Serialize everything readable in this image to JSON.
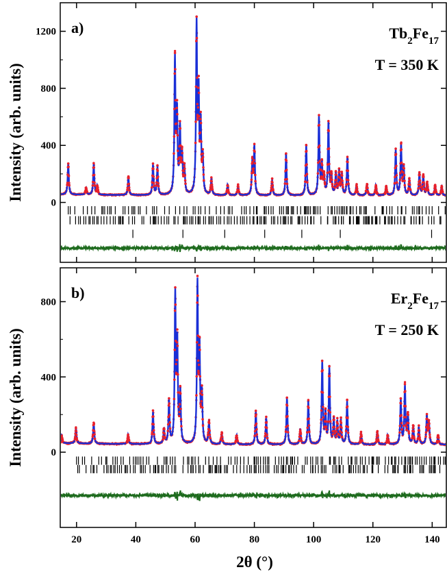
{
  "chart_data": [
    {
      "type": "line",
      "panel_label": "a)",
      "compound": {
        "el": "Tb",
        "sub1": "2",
        "el2": "Fe",
        "sub2": "17"
      },
      "temperature": "T = 350 K",
      "ylabel": "Intensity (arb. units)",
      "xlim": [
        14.5,
        145
      ],
      "ylim": [
        -420,
        1400
      ],
      "yticks": [
        0,
        400,
        800,
        1200
      ],
      "ytick_labels": [
        "0",
        "400",
        "800",
        "1200"
      ],
      "baseline": 48,
      "difference_offset": -320,
      "legend": "none",
      "grid": false,
      "colors": {
        "observed": "#e8202a",
        "calculated": "#1a2fd6",
        "difference": "#1e6b1e",
        "bragg": "#000000"
      },
      "peaks": [
        {
          "x": 17.2,
          "y": 270
        },
        {
          "x": 23.2,
          "y": 95
        },
        {
          "x": 25.8,
          "y": 265
        },
        {
          "x": 27.0,
          "y": 110
        },
        {
          "x": 37.5,
          "y": 180
        },
        {
          "x": 45.8,
          "y": 260
        },
        {
          "x": 47.3,
          "y": 245
        },
        {
          "x": 53.2,
          "y": 990
        },
        {
          "x": 53.9,
          "y": 600
        },
        {
          "x": 54.9,
          "y": 500
        },
        {
          "x": 55.6,
          "y": 320
        },
        {
          "x": 56.4,
          "y": 230
        },
        {
          "x": 60.5,
          "y": 1230
        },
        {
          "x": 61.2,
          "y": 720
        },
        {
          "x": 61.9,
          "y": 520
        },
        {
          "x": 62.6,
          "y": 290
        },
        {
          "x": 65.5,
          "y": 160
        },
        {
          "x": 71.0,
          "y": 120
        },
        {
          "x": 74.5,
          "y": 115
        },
        {
          "x": 79.3,
          "y": 280
        },
        {
          "x": 80.0,
          "y": 390
        },
        {
          "x": 86.0,
          "y": 160
        },
        {
          "x": 90.7,
          "y": 340
        },
        {
          "x": 97.5,
          "y": 400
        },
        {
          "x": 101.8,
          "y": 600
        },
        {
          "x": 102.8,
          "y": 250
        },
        {
          "x": 103.5,
          "y": 180
        },
        {
          "x": 105.0,
          "y": 560
        },
        {
          "x": 106.0,
          "y": 190
        },
        {
          "x": 107.5,
          "y": 200
        },
        {
          "x": 108.6,
          "y": 220
        },
        {
          "x": 109.5,
          "y": 190
        },
        {
          "x": 111.4,
          "y": 320
        },
        {
          "x": 114.5,
          "y": 120
        },
        {
          "x": 118.0,
          "y": 130
        },
        {
          "x": 121.0,
          "y": 120
        },
        {
          "x": 124.5,
          "y": 110
        },
        {
          "x": 127.7,
          "y": 370
        },
        {
          "x": 129.5,
          "y": 400
        },
        {
          "x": 130.4,
          "y": 250
        },
        {
          "x": 132.3,
          "y": 160
        },
        {
          "x": 135.7,
          "y": 210
        },
        {
          "x": 137.0,
          "y": 190
        },
        {
          "x": 138.3,
          "y": 140
        },
        {
          "x": 141.0,
          "y": 120
        },
        {
          "x": 143.2,
          "y": 110
        }
      ],
      "bragg_rows": [
        {
          "y": -55,
          "start": 17.2,
          "step": 0.95,
          "jitter": 0.55
        },
        {
          "y": -125,
          "start": 17.8,
          "step": 0.75,
          "jitter": 0.45
        },
        {
          "y": -220,
          "positions": [
            39.0,
            55.9,
            70.0,
            83.5,
            96.0,
            109.0,
            139.8
          ]
        }
      ]
    },
    {
      "type": "line",
      "panel_label": "b)",
      "compound": {
        "el": "Er",
        "sub1": "2",
        "el2": "Fe",
        "sub2": "17"
      },
      "temperature": "T = 250 K",
      "ylabel": "Intensity (arb. units)",
      "xlabel": "2θ (°)",
      "xlim": [
        14.5,
        145
      ],
      "xticks": [
        20,
        40,
        60,
        80,
        100,
        120,
        140
      ],
      "xtick_labels": [
        "20",
        "40",
        "60",
        "80",
        "100",
        "120",
        "140"
      ],
      "ylim": [
        -400,
        980
      ],
      "yticks": [
        0,
        400,
        800
      ],
      "ytick_labels": [
        "0",
        "400",
        "800"
      ],
      "baseline": 40,
      "difference_offset": -230,
      "legend": "none",
      "grid": false,
      "colors": {
        "observed": "#e8202a",
        "calculated": "#1a2fd6",
        "difference": "#1e6b1e",
        "bragg": "#000000"
      },
      "peaks": [
        {
          "x": 15.0,
          "y": 80
        },
        {
          "x": 19.8,
          "y": 125
        },
        {
          "x": 25.8,
          "y": 155
        },
        {
          "x": 37.4,
          "y": 90
        },
        {
          "x": 45.8,
          "y": 210
        },
        {
          "x": 49.5,
          "y": 120
        },
        {
          "x": 51.2,
          "y": 270
        },
        {
          "x": 53.3,
          "y": 820
        },
        {
          "x": 54.0,
          "y": 560
        },
        {
          "x": 55.0,
          "y": 310
        },
        {
          "x": 60.8,
          "y": 880
        },
        {
          "x": 61.5,
          "y": 520
        },
        {
          "x": 62.3,
          "y": 300
        },
        {
          "x": 64.7,
          "y": 160
        },
        {
          "x": 69.0,
          "y": 100
        },
        {
          "x": 74.0,
          "y": 90
        },
        {
          "x": 80.5,
          "y": 220
        },
        {
          "x": 84.0,
          "y": 180
        },
        {
          "x": 91.0,
          "y": 290
        },
        {
          "x": 95.5,
          "y": 120
        },
        {
          "x": 98.2,
          "y": 270
        },
        {
          "x": 102.9,
          "y": 480
        },
        {
          "x": 104.0,
          "y": 200
        },
        {
          "x": 105.3,
          "y": 450
        },
        {
          "x": 106.8,
          "y": 170
        },
        {
          "x": 108.0,
          "y": 160
        },
        {
          "x": 109.2,
          "y": 170
        },
        {
          "x": 111.3,
          "y": 270
        },
        {
          "x": 116.0,
          "y": 100
        },
        {
          "x": 121.5,
          "y": 110
        },
        {
          "x": 125.0,
          "y": 90
        },
        {
          "x": 129.4,
          "y": 280
        },
        {
          "x": 130.8,
          "y": 350
        },
        {
          "x": 131.8,
          "y": 200
        },
        {
          "x": 133.6,
          "y": 140
        },
        {
          "x": 135.5,
          "y": 130
        },
        {
          "x": 138.2,
          "y": 190
        },
        {
          "x": 138.9,
          "y": 160
        },
        {
          "x": 142.0,
          "y": 90
        }
      ],
      "bragg_rows": [
        {
          "y": -45,
          "start": 20.0,
          "step": 0.9,
          "jitter": 0.5
        },
        {
          "y": -90,
          "start": 20.4,
          "step": 0.75,
          "jitter": 0.45
        }
      ]
    }
  ]
}
